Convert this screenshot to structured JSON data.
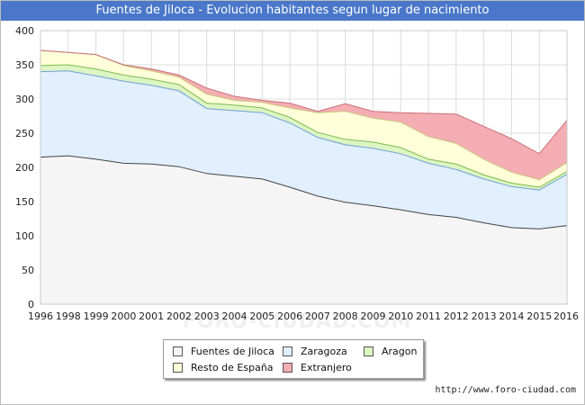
{
  "title": "Fuentes de Jiloca - Evolucion habitantes segun lugar de nacimiento",
  "watermark": "FORO-CIUDAD.COM",
  "source": "http://www.foro-ciudad.com",
  "colors": {
    "title_bg": "#4a77c9",
    "fuentes": "#f5f5f5",
    "zaragoza": "#e1efff",
    "aragon": "#ddf5c2",
    "resto": "#ffffd9",
    "extranjero": "#f4adb2"
  },
  "chart_data": {
    "type": "area",
    "stacked": true,
    "x": [
      "1996",
      "1998",
      "1999",
      "2000",
      "2001",
      "2002",
      "2003",
      "2004",
      "2005",
      "2006",
      "2007",
      "2008",
      "2009",
      "2010",
      "2011",
      "2012",
      "2013",
      "2014",
      "2015",
      "2016"
    ],
    "ylim": [
      0,
      400
    ],
    "yticks": [
      0,
      50,
      100,
      150,
      200,
      250,
      300,
      350,
      400
    ],
    "grid": true,
    "legend_position": "bottom",
    "series": [
      {
        "name": "Fuentes de Jiloca",
        "color": "#f5f5f5",
        "line": "#444444",
        "values": [
          215,
          217,
          212,
          206,
          205,
          201,
          191,
          187,
          183,
          171,
          158,
          149,
          144,
          138,
          131,
          127,
          119,
          112,
          110,
          115
        ]
      },
      {
        "name": "Zaragoza",
        "color": "#e1efff",
        "line": "#6fa0d6",
        "values": [
          125,
          124,
          122,
          120,
          115,
          111,
          95,
          96,
          97,
          94,
          86,
          84,
          84,
          82,
          75,
          70,
          64,
          60,
          57,
          75
        ]
      },
      {
        "name": "Aragon",
        "color": "#ddf5c2",
        "line": "#7dbb4f",
        "values": [
          9,
          9,
          10,
          9,
          9,
          9,
          8,
          8,
          7,
          8,
          7,
          8,
          9,
          9,
          6,
          8,
          6,
          5,
          4,
          4
        ]
      },
      {
        "name": "Resto de España",
        "color": "#ffffd9",
        "line": "#c8c880",
        "values": [
          22,
          18,
          21,
          14,
          12,
          11,
          13,
          7,
          8,
          14,
          29,
          41,
          35,
          37,
          33,
          30,
          23,
          16,
          11,
          13
        ]
      },
      {
        "name": "Extranjero",
        "color": "#f4adb2",
        "line": "#c8707a",
        "values": [
          0,
          0,
          0,
          1,
          3,
          3,
          9,
          6,
          3,
          7,
          2,
          11,
          10,
          14,
          34,
          43,
          48,
          49,
          38,
          62
        ]
      }
    ]
  }
}
